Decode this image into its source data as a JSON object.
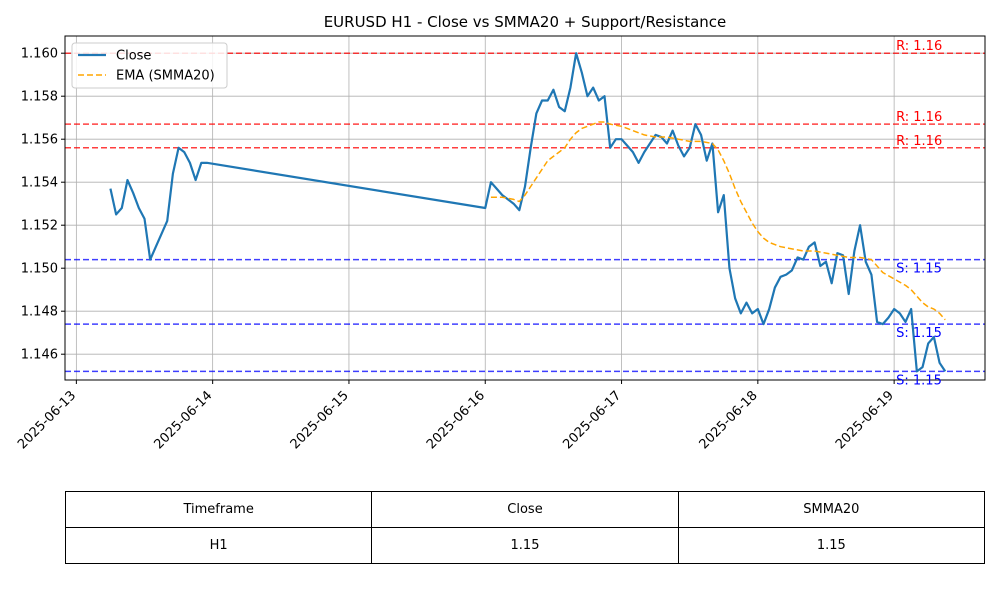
{
  "chart_data": {
    "type": "line",
    "title": "EURUSD H1 - Close vs SMMA20 + Support/Resistance",
    "xlabel": "",
    "ylabel": "",
    "xlim": [
      "2025-06-12T22:00",
      "2025-06-19T16:00"
    ],
    "ylim": [
      1.1448,
      1.1608
    ],
    "x_ticks": [
      "2025-06-13",
      "2025-06-14",
      "2025-06-15",
      "2025-06-16",
      "2025-06-17",
      "2025-06-18",
      "2025-06-19"
    ],
    "y_ticks": [
      "1.146",
      "1.148",
      "1.150",
      "1.152",
      "1.154",
      "1.156",
      "1.158",
      "1.160"
    ],
    "grid": true,
    "legend": "upper-left",
    "series": [
      {
        "name": "Close",
        "color": "#1f77b4",
        "style": "solid",
        "points": [
          [
            "2025-06-13T06:00",
            1.1537
          ],
          [
            "2025-06-13T07:00",
            1.1525
          ],
          [
            "2025-06-13T08:00",
            1.1528
          ],
          [
            "2025-06-13T09:00",
            1.1541
          ],
          [
            "2025-06-13T10:00",
            1.1535
          ],
          [
            "2025-06-13T11:00",
            1.1528
          ],
          [
            "2025-06-13T12:00",
            1.1523
          ],
          [
            "2025-06-13T13:00",
            1.1504
          ],
          [
            "2025-06-13T14:00",
            1.151
          ],
          [
            "2025-06-13T15:00",
            1.1516
          ],
          [
            "2025-06-13T16:00",
            1.1522
          ],
          [
            "2025-06-13T17:00",
            1.1544
          ],
          [
            "2025-06-13T18:00",
            1.1556
          ],
          [
            "2025-06-13T19:00",
            1.1554
          ],
          [
            "2025-06-13T20:00",
            1.1549
          ],
          [
            "2025-06-13T21:00",
            1.1541
          ],
          [
            "2025-06-13T22:00",
            1.1549
          ],
          [
            "2025-06-13T23:00",
            1.1549
          ],
          [
            "2025-06-16T00:00",
            1.1528
          ],
          [
            "2025-06-16T01:00",
            1.154
          ],
          [
            "2025-06-16T02:00",
            1.1537
          ],
          [
            "2025-06-16T03:00",
            1.1534
          ],
          [
            "2025-06-16T04:00",
            1.1532
          ],
          [
            "2025-06-16T05:00",
            1.153
          ],
          [
            "2025-06-16T06:00",
            1.1527
          ],
          [
            "2025-06-16T07:00",
            1.1538
          ],
          [
            "2025-06-16T08:00",
            1.1556
          ],
          [
            "2025-06-16T09:00",
            1.1572
          ],
          [
            "2025-06-16T10:00",
            1.1578
          ],
          [
            "2025-06-16T11:00",
            1.1578
          ],
          [
            "2025-06-16T12:00",
            1.1583
          ],
          [
            "2025-06-16T13:00",
            1.1575
          ],
          [
            "2025-06-16T14:00",
            1.1573
          ],
          [
            "2025-06-16T15:00",
            1.1584
          ],
          [
            "2025-06-16T16:00",
            1.16
          ],
          [
            "2025-06-16T17:00",
            1.1591
          ],
          [
            "2025-06-16T18:00",
            1.158
          ],
          [
            "2025-06-16T19:00",
            1.1584
          ],
          [
            "2025-06-16T20:00",
            1.1578
          ],
          [
            "2025-06-16T21:00",
            1.158
          ],
          [
            "2025-06-16T22:00",
            1.1556
          ],
          [
            "2025-06-16T23:00",
            1.156
          ],
          [
            "2025-06-17T00:00",
            1.156
          ],
          [
            "2025-06-17T01:00",
            1.1557
          ],
          [
            "2025-06-17T02:00",
            1.1554
          ],
          [
            "2025-06-17T03:00",
            1.1549
          ],
          [
            "2025-06-17T04:00",
            1.1554
          ],
          [
            "2025-06-17T05:00",
            1.1558
          ],
          [
            "2025-06-17T06:00",
            1.1562
          ],
          [
            "2025-06-17T07:00",
            1.1561
          ],
          [
            "2025-06-17T08:00",
            1.1558
          ],
          [
            "2025-06-17T09:00",
            1.1564
          ],
          [
            "2025-06-17T10:00",
            1.1557
          ],
          [
            "2025-06-17T11:00",
            1.1552
          ],
          [
            "2025-06-17T12:00",
            1.1556
          ],
          [
            "2025-06-17T13:00",
            1.1567
          ],
          [
            "2025-06-17T14:00",
            1.1562
          ],
          [
            "2025-06-17T15:00",
            1.155
          ],
          [
            "2025-06-17T16:00",
            1.1558
          ],
          [
            "2025-06-17T17:00",
            1.1526
          ],
          [
            "2025-06-17T18:00",
            1.1534
          ],
          [
            "2025-06-17T19:00",
            1.15
          ],
          [
            "2025-06-17T20:00",
            1.1486
          ],
          [
            "2025-06-17T21:00",
            1.1479
          ],
          [
            "2025-06-17T22:00",
            1.1484
          ],
          [
            "2025-06-17T23:00",
            1.1479
          ],
          [
            "2025-06-18T00:00",
            1.1481
          ],
          [
            "2025-06-18T01:00",
            1.1474
          ],
          [
            "2025-06-18T02:00",
            1.1481
          ],
          [
            "2025-06-18T03:00",
            1.1491
          ],
          [
            "2025-06-18T04:00",
            1.1496
          ],
          [
            "2025-06-18T05:00",
            1.1497
          ],
          [
            "2025-06-18T06:00",
            1.1499
          ],
          [
            "2025-06-18T07:00",
            1.1505
          ],
          [
            "2025-06-18T08:00",
            1.1504
          ],
          [
            "2025-06-18T09:00",
            1.151
          ],
          [
            "2025-06-18T10:00",
            1.1512
          ],
          [
            "2025-06-18T11:00",
            1.1501
          ],
          [
            "2025-06-18T12:00",
            1.1503
          ],
          [
            "2025-06-18T13:00",
            1.1493
          ],
          [
            "2025-06-18T14:00",
            1.1507
          ],
          [
            "2025-06-18T15:00",
            1.1506
          ],
          [
            "2025-06-18T16:00",
            1.1488
          ],
          [
            "2025-06-18T17:00",
            1.1508
          ],
          [
            "2025-06-18T18:00",
            1.152
          ],
          [
            "2025-06-18T19:00",
            1.1503
          ],
          [
            "2025-06-18T20:00",
            1.1497
          ],
          [
            "2025-06-18T21:00",
            1.1475
          ],
          [
            "2025-06-18T22:00",
            1.1474
          ],
          [
            "2025-06-18T23:00",
            1.1477
          ],
          [
            "2025-06-19T00:00",
            1.1481
          ],
          [
            "2025-06-19T01:00",
            1.1479
          ],
          [
            "2025-06-19T02:00",
            1.1475
          ],
          [
            "2025-06-19T03:00",
            1.1481
          ],
          [
            "2025-06-19T04:00",
            1.1452
          ],
          [
            "2025-06-19T05:00",
            1.1454
          ],
          [
            "2025-06-19T06:00",
            1.1465
          ],
          [
            "2025-06-19T07:00",
            1.1468
          ],
          [
            "2025-06-19T08:00",
            1.1456
          ],
          [
            "2025-06-19T09:00",
            1.1452
          ]
        ]
      },
      {
        "name": "EMA (SMMA20)",
        "color": "#ffa500",
        "style": "dashed",
        "points": [
          [
            "2025-06-16T01:00",
            1.1533
          ],
          [
            "2025-06-16T03:00",
            1.1533
          ],
          [
            "2025-06-16T05:00",
            1.1532
          ],
          [
            "2025-06-16T06:00",
            1.1531
          ],
          [
            "2025-06-16T07:00",
            1.1534
          ],
          [
            "2025-06-16T08:00",
            1.1538
          ],
          [
            "2025-06-16T09:00",
            1.1542
          ],
          [
            "2025-06-16T10:00",
            1.1546
          ],
          [
            "2025-06-16T11:00",
            1.155
          ],
          [
            "2025-06-16T12:00",
            1.1552
          ],
          [
            "2025-06-16T13:00",
            1.1554
          ],
          [
            "2025-06-16T14:00",
            1.1556
          ],
          [
            "2025-06-16T15:00",
            1.156
          ],
          [
            "2025-06-16T16:00",
            1.1563
          ],
          [
            "2025-06-16T17:00",
            1.1565
          ],
          [
            "2025-06-16T18:00",
            1.1566
          ],
          [
            "2025-06-16T19:00",
            1.1567
          ],
          [
            "2025-06-16T20:00",
            1.1568
          ],
          [
            "2025-06-16T21:00",
            1.1568
          ],
          [
            "2025-06-16T22:00",
            1.1567
          ],
          [
            "2025-06-17T00:00",
            1.1566
          ],
          [
            "2025-06-17T02:00",
            1.1564
          ],
          [
            "2025-06-17T04:00",
            1.1562
          ],
          [
            "2025-06-17T06:00",
            1.1561
          ],
          [
            "2025-06-17T08:00",
            1.1561
          ],
          [
            "2025-06-17T10:00",
            1.156
          ],
          [
            "2025-06-17T12:00",
            1.1559
          ],
          [
            "2025-06-17T14:00",
            1.1559
          ],
          [
            "2025-06-17T16:00",
            1.1558
          ],
          [
            "2025-06-17T17:00",
            1.1555
          ],
          [
            "2025-06-17T18:00",
            1.155
          ],
          [
            "2025-06-17T19:00",
            1.1544
          ],
          [
            "2025-06-17T20:00",
            1.1537
          ],
          [
            "2025-06-17T21:00",
            1.1531
          ],
          [
            "2025-06-17T22:00",
            1.1526
          ],
          [
            "2025-06-17T23:00",
            1.1521
          ],
          [
            "2025-06-18T00:00",
            1.1517
          ],
          [
            "2025-06-18T01:00",
            1.1514
          ],
          [
            "2025-06-18T02:00",
            1.1512
          ],
          [
            "2025-06-18T03:00",
            1.1511
          ],
          [
            "2025-06-18T04:00",
            1.151
          ],
          [
            "2025-06-18T06:00",
            1.1509
          ],
          [
            "2025-06-18T08:00",
            1.1508
          ],
          [
            "2025-06-18T10:00",
            1.1508
          ],
          [
            "2025-06-18T12:00",
            1.1507
          ],
          [
            "2025-06-18T14:00",
            1.1506
          ],
          [
            "2025-06-18T16:00",
            1.1505
          ],
          [
            "2025-06-18T18:00",
            1.1505
          ],
          [
            "2025-06-18T20:00",
            1.1504
          ],
          [
            "2025-06-18T22:00",
            1.1498
          ],
          [
            "2025-06-19T00:00",
            1.1495
          ],
          [
            "2025-06-19T02:00",
            1.1492
          ],
          [
            "2025-06-19T03:00",
            1.149
          ],
          [
            "2025-06-19T04:00",
            1.1487
          ],
          [
            "2025-06-19T05:00",
            1.1484
          ],
          [
            "2025-06-19T06:00",
            1.1482
          ],
          [
            "2025-06-19T07:00",
            1.1481
          ],
          [
            "2025-06-19T08:00",
            1.1479
          ],
          [
            "2025-06-19T09:00",
            1.1476
          ]
        ]
      }
    ],
    "levels": [
      {
        "kind": "resistance",
        "value": 1.16,
        "label": "R: 1.16",
        "color": "#ff0000"
      },
      {
        "kind": "resistance",
        "value": 1.1567,
        "label": "R: 1.16",
        "color": "#ff0000"
      },
      {
        "kind": "resistance",
        "value": 1.1556,
        "label": "R: 1.16",
        "color": "#ff0000"
      },
      {
        "kind": "support",
        "value": 1.1504,
        "label": "S: 1.15",
        "color": "#0000ff"
      },
      {
        "kind": "support",
        "value": 1.1474,
        "label": "S: 1.15",
        "color": "#0000ff"
      },
      {
        "kind": "support",
        "value": 1.1452,
        "label": "S: 1.15",
        "color": "#0000ff"
      }
    ]
  },
  "table": {
    "headers": [
      "Timeframe",
      "Close",
      "SMMA20"
    ],
    "rows": [
      [
        "H1",
        "1.15",
        "1.15"
      ]
    ]
  }
}
